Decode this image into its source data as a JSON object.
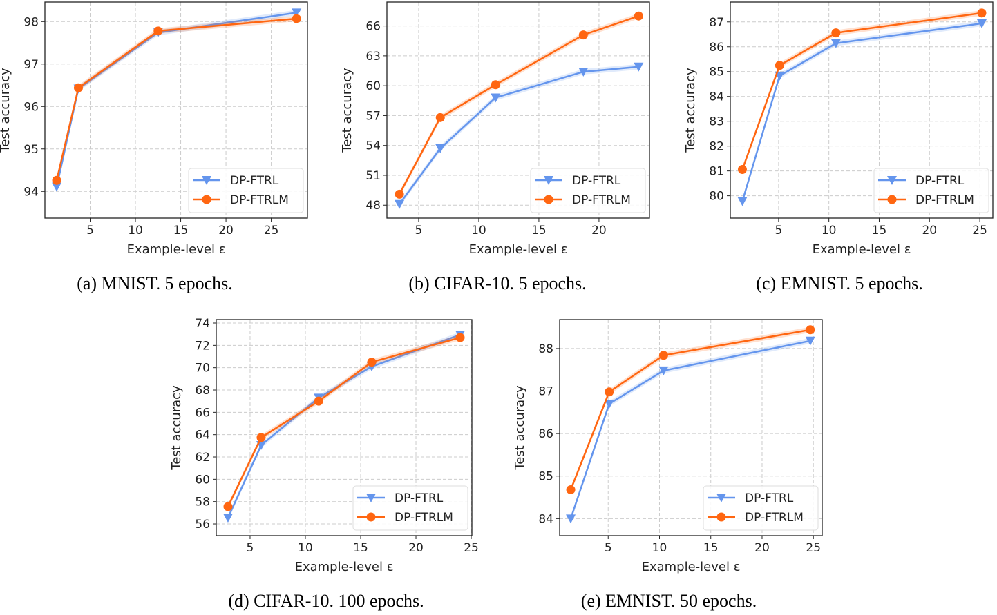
{
  "colors": {
    "DP-FTRL": "#6495ed",
    "DP-FTRLM": "#ff6611"
  },
  "markers": {
    "DP-FTRL": "triangle-down",
    "DP-FTRLM": "circle"
  },
  "chart_data": [
    {
      "type": "line",
      "caption": "(a) MNIST. 5 epochs.",
      "xlabel": "Example-level ε",
      "ylabel": "Test accuracy",
      "xlim": [
        0.0,
        29.0
      ],
      "ylim": [
        93.37,
        98.46
      ],
      "xticks": [
        5,
        10,
        15,
        20,
        25
      ],
      "yticks": [
        94,
        95,
        96,
        97,
        98
      ],
      "grid": true,
      "legend": "lower-right",
      "series": [
        {
          "name": "DP-FTRL",
          "x": [
            1.3,
            3.7,
            12.5,
            27.8
          ],
          "y": [
            94.11,
            96.42,
            97.74,
            98.21
          ]
        },
        {
          "name": "DP-FTRLM",
          "x": [
            1.3,
            3.7,
            12.5,
            27.8
          ],
          "y": [
            94.26,
            96.44,
            97.78,
            98.07
          ]
        }
      ]
    },
    {
      "type": "line",
      "caption": "(b) CIFAR-10. 5 epochs.",
      "xlabel": "Example-level ε",
      "ylabel": "Test accuracy",
      "xlim": [
        2.36,
        24.2
      ],
      "ylim": [
        46.7,
        68.4
      ],
      "xticks": [
        5,
        10,
        15,
        20
      ],
      "yticks": [
        48,
        51,
        54,
        57,
        60,
        63,
        66
      ],
      "grid": true,
      "legend": "lower-right",
      "series": [
        {
          "name": "DP-FTRL",
          "x": [
            3.4,
            6.8,
            11.4,
            18.7,
            23.3
          ],
          "y": [
            48.1,
            53.7,
            58.8,
            61.4,
            61.9
          ]
        },
        {
          "name": "DP-FTRLM",
          "x": [
            3.4,
            6.8,
            11.4,
            18.7,
            23.3
          ],
          "y": [
            49.1,
            56.8,
            60.1,
            65.1,
            67.0
          ]
        }
      ]
    },
    {
      "type": "line",
      "caption": "(c) EMNIST. 5 epochs.",
      "xlabel": "Example-level ε",
      "ylabel": "Test accuracy",
      "xlim": [
        0.2,
        26.3
      ],
      "ylim": [
        79.1,
        87.8
      ],
      "xticks": [
        5,
        10,
        15,
        20,
        25
      ],
      "yticks": [
        80,
        81,
        82,
        83,
        84,
        85,
        86,
        87
      ],
      "grid": true,
      "legend": "lower-right",
      "series": [
        {
          "name": "DP-FTRL",
          "x": [
            1.4,
            5.1,
            10.7,
            25.2
          ],
          "y": [
            79.78,
            84.83,
            86.14,
            86.94
          ]
        },
        {
          "name": "DP-FTRLM",
          "x": [
            1.4,
            5.1,
            10.7,
            25.2
          ],
          "y": [
            81.06,
            85.25,
            86.56,
            87.36
          ]
        }
      ]
    },
    {
      "type": "line",
      "caption": "(d) CIFAR-10. 100 epochs.",
      "xlabel": "Example-level ε",
      "ylabel": "Test accuracy",
      "xlim": [
        1.94,
        25.06
      ],
      "ylim": [
        54.95,
        74.31
      ],
      "xticks": [
        5,
        10,
        15,
        20,
        25
      ],
      "yticks": [
        56,
        58,
        60,
        62,
        64,
        66,
        68,
        70,
        72,
        74
      ],
      "grid": true,
      "legend": "lower-right",
      "series": [
        {
          "name": "DP-FTRL",
          "x": [
            3.0,
            6.0,
            11.2,
            16.0,
            24.0
          ],
          "y": [
            56.56,
            63.05,
            67.3,
            70.1,
            72.95
          ]
        },
        {
          "name": "DP-FTRLM",
          "x": [
            3.0,
            6.0,
            11.2,
            16.0,
            24.0
          ],
          "y": [
            57.55,
            63.74,
            67.0,
            70.5,
            72.7
          ]
        }
      ]
    },
    {
      "type": "line",
      "caption": "(e) EMNIST. 50 epochs.",
      "xlabel": "Example-level ε",
      "ylabel": "Test accuracy",
      "xlim": [
        0.27,
        25.86
      ],
      "ylim": [
        83.6,
        88.68
      ],
      "xticks": [
        5,
        10,
        15,
        20,
        25
      ],
      "yticks": [
        84,
        85,
        86,
        87,
        88
      ],
      "grid": true,
      "legend": "lower-right",
      "series": [
        {
          "name": "DP-FTRL",
          "x": [
            1.35,
            5.1,
            10.4,
            24.7
          ],
          "y": [
            84.0,
            86.7,
            87.48,
            88.18
          ]
        },
        {
          "name": "DP-FTRLM",
          "x": [
            1.35,
            5.1,
            10.4,
            24.7
          ],
          "y": [
            84.68,
            86.98,
            87.84,
            88.44
          ]
        }
      ]
    }
  ]
}
